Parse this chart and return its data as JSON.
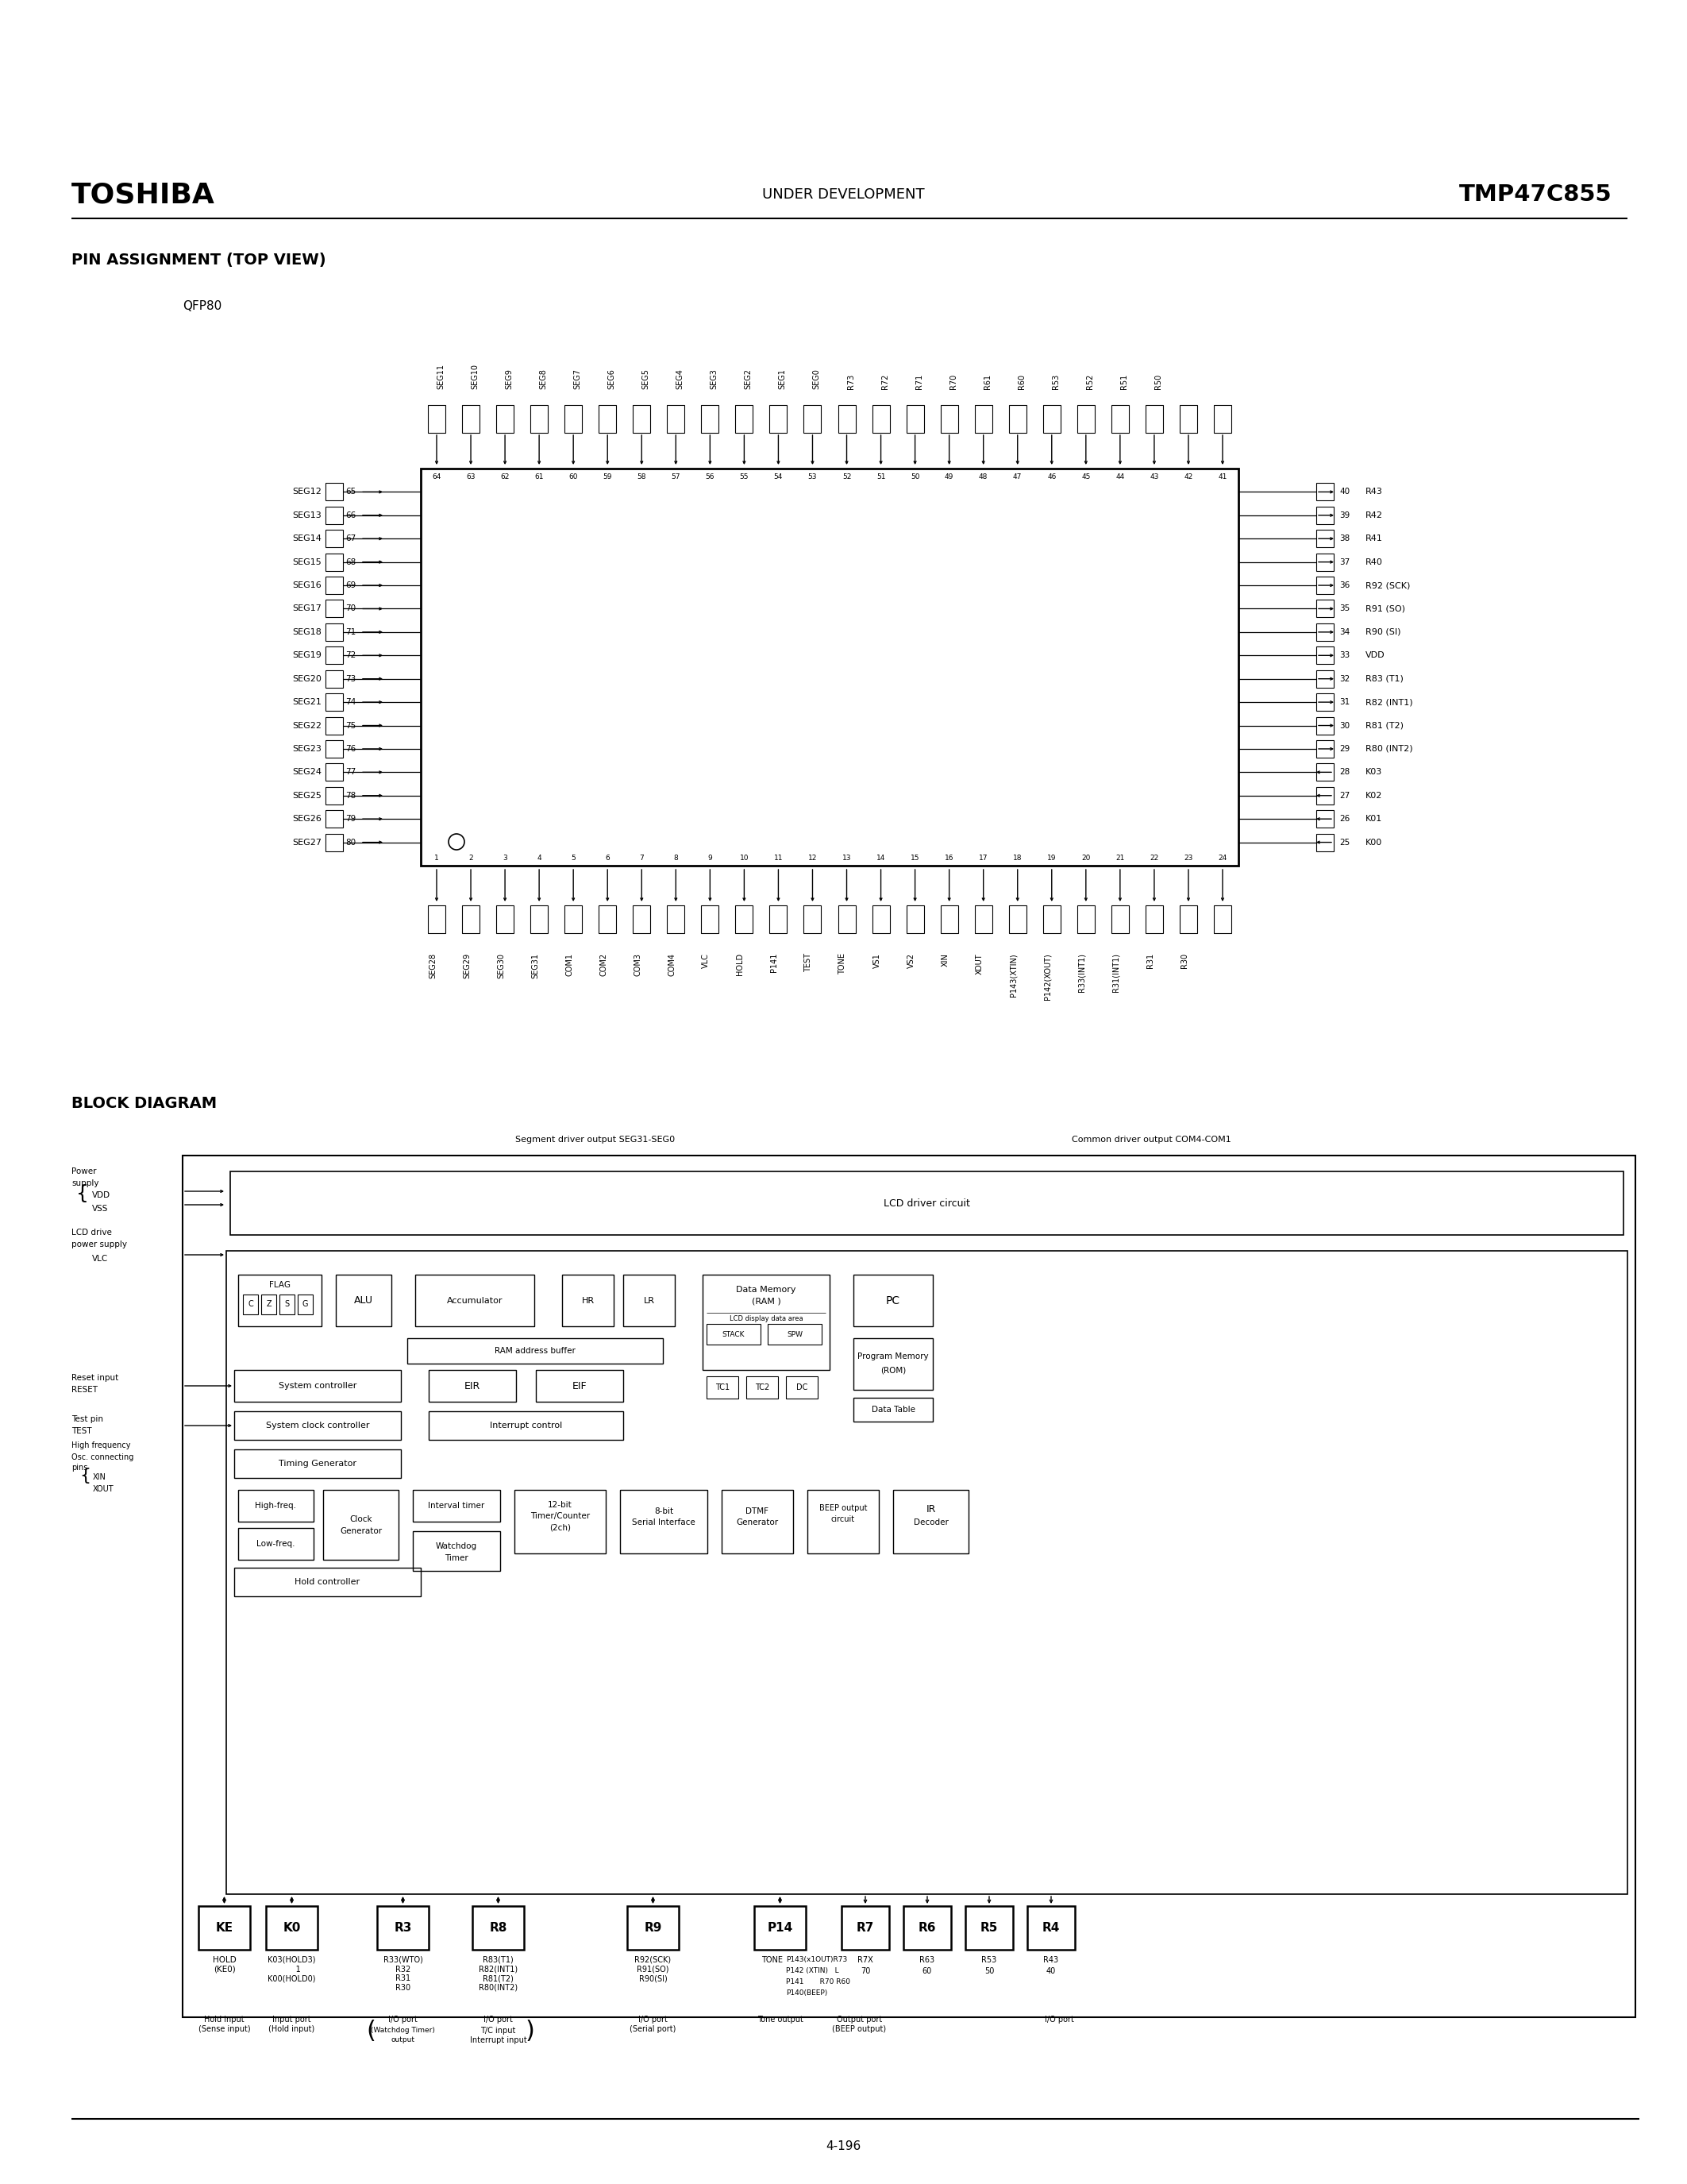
{
  "title_left": "TOSHIBA",
  "title_center": "UNDER DEVELOPMENT",
  "title_right": "TMP47C855",
  "section1": "PIN ASSIGNMENT (TOP VIEW)",
  "qfp_label": "QFP80",
  "section2": "BLOCK DIAGRAM",
  "page_number": "4-196",
  "bg_color": "#ffffff",
  "left_pins": [
    {
      "num": "65",
      "label": "SEG12"
    },
    {
      "num": "66",
      "label": "SEG13"
    },
    {
      "num": "67",
      "label": "SEG14"
    },
    {
      "num": "68",
      "label": "SEG15"
    },
    {
      "num": "69",
      "label": "SEG16"
    },
    {
      "num": "70",
      "label": "SEG17"
    },
    {
      "num": "71",
      "label": "SEG18"
    },
    {
      "num": "72",
      "label": "SEG19"
    },
    {
      "num": "73",
      "label": "SEG20"
    },
    {
      "num": "74",
      "label": "SEG21"
    },
    {
      "num": "75",
      "label": "SEG22"
    },
    {
      "num": "76",
      "label": "SEG23"
    },
    {
      "num": "77",
      "label": "SEG24"
    },
    {
      "num": "78",
      "label": "SEG25"
    },
    {
      "num": "79",
      "label": "SEG26"
    },
    {
      "num": "80",
      "label": "SEG27"
    }
  ],
  "right_pins": [
    {
      "num": "40",
      "label": "R43",
      "inarrow": false
    },
    {
      "num": "39",
      "label": "R42",
      "inarrow": false
    },
    {
      "num": "38",
      "label": "R41",
      "inarrow": false
    },
    {
      "num": "37",
      "label": "R40",
      "inarrow": false
    },
    {
      "num": "36",
      "label": "R92 (SCK)",
      "inarrow": false
    },
    {
      "num": "35",
      "label": "R91 (SO)",
      "inarrow": false
    },
    {
      "num": "34",
      "label": "R90 (SI)",
      "inarrow": false
    },
    {
      "num": "33",
      "label": "VDD",
      "inarrow": false
    },
    {
      "num": "32",
      "label": "R83 (T1)",
      "inarrow": false
    },
    {
      "num": "31",
      "label": "R82 (INT1)",
      "inarrow": false
    },
    {
      "num": "30",
      "label": "R81 (T2)",
      "inarrow": false
    },
    {
      "num": "29",
      "label": "R80 (INT2)",
      "inarrow": false
    },
    {
      "num": "28",
      "label": "K03",
      "inarrow": true
    },
    {
      "num": "27",
      "label": "K02",
      "inarrow": true
    },
    {
      "num": "26",
      "label": "K01",
      "inarrow": true
    },
    {
      "num": "25",
      "label": "K00",
      "inarrow": true
    }
  ],
  "top_nums": [
    64,
    63,
    62,
    61,
    60,
    59,
    58,
    57,
    56,
    55,
    54,
    53,
    52,
    51,
    50,
    49,
    48,
    47,
    46,
    45,
    44,
    43,
    42,
    41
  ],
  "top_labels": [
    "SEG11",
    "SEG10",
    "SEG9",
    "SEG8",
    "SEG7",
    "SEG6",
    "SEG5",
    "SEG4",
    "SEG3",
    "SEG2",
    "SEG1",
    "SEG0",
    "R73",
    "R72",
    "R71",
    "R70",
    "R61",
    "R60",
    "R53",
    "R52",
    "R51",
    "R50",
    "",
    ""
  ],
  "bot_nums": [
    1,
    2,
    3,
    4,
    5,
    6,
    7,
    8,
    9,
    10,
    11,
    12,
    13,
    14,
    15,
    16,
    17,
    18,
    19,
    20,
    21,
    22,
    23,
    24
  ],
  "bot_labels": [
    "SEG28",
    "SEG29",
    "SEG30",
    "SEG31",
    "COM1",
    "COM2",
    "COM3",
    "COM4",
    "VLC",
    "HOLD",
    "P141",
    "TEST",
    "TONE",
    "VS1",
    "VS2",
    "XIN",
    "XOUT",
    "P143(XTIN)",
    "P142(XOUT)",
    "R33(INT1)",
    "R31(INT1)",
    "R31",
    "R30",
    ""
  ]
}
